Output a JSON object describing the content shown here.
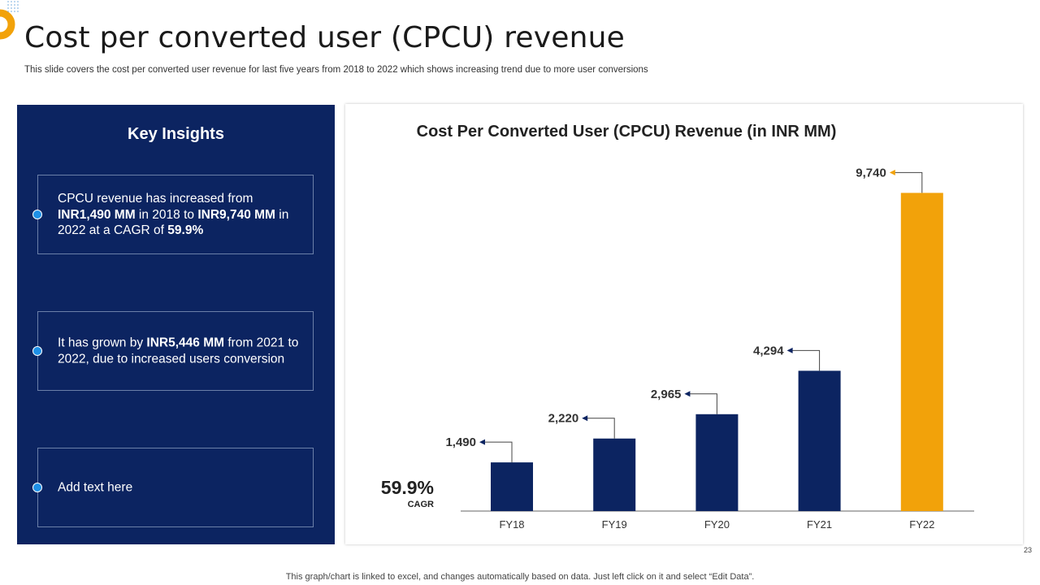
{
  "title": "Cost per converted user (CPCU) revenue",
  "subtitle": "This slide covers the cost per converted user revenue for last five years from 2018 to 2022 which shows increasing trend due to more user conversions",
  "insights": {
    "heading": "Key Insights",
    "items": [
      [
        {
          "text": "CPCU revenue has increased from ",
          "bold": false
        },
        {
          "text": "INR1,490 MM",
          "bold": true
        },
        {
          "text": " in 2018 to ",
          "bold": false
        },
        {
          "text": "INR9,740 MM",
          "bold": true
        },
        {
          "text": " in 2022 at a CAGR of ",
          "bold": false
        },
        {
          "text": "59.9%",
          "bold": true
        }
      ],
      [
        {
          "text": "It has grown by ",
          "bold": false
        },
        {
          "text": "INR5,446 MM",
          "bold": true
        },
        {
          "text": " from 2021 to 2022, due to increased users conversion",
          "bold": false
        }
      ],
      [
        {
          "text": "Add text here",
          "bold": false
        }
      ]
    ]
  },
  "chart_data": {
    "type": "bar",
    "title": "Cost Per Converted User (CPCU) Revenue (in INR MM)",
    "categories": [
      "FY18",
      "FY19",
      "FY20",
      "FY21",
      "FY22"
    ],
    "values": [
      1490,
      2220,
      2965,
      4294,
      9740
    ],
    "value_labels": [
      "1,490",
      "2,220",
      "2,965",
      "4,294",
      "9,740"
    ],
    "ylim": [
      0,
      10000
    ],
    "xlabel": "",
    "ylabel": "",
    "grid": false,
    "cagr_value": "59.9%",
    "cagr_label": "CAGR",
    "colors": {
      "bar": "#0c2461",
      "highlight": "#f2a20a",
      "arrow_normal": "#0c2461",
      "arrow_highlight": "#f2a20a"
    },
    "highlight_index": 4
  },
  "footer": "This graph/chart is linked to excel,  and changes automatically based on data. Just left click on it and select “Edit Data”.",
  "page_number": "23"
}
